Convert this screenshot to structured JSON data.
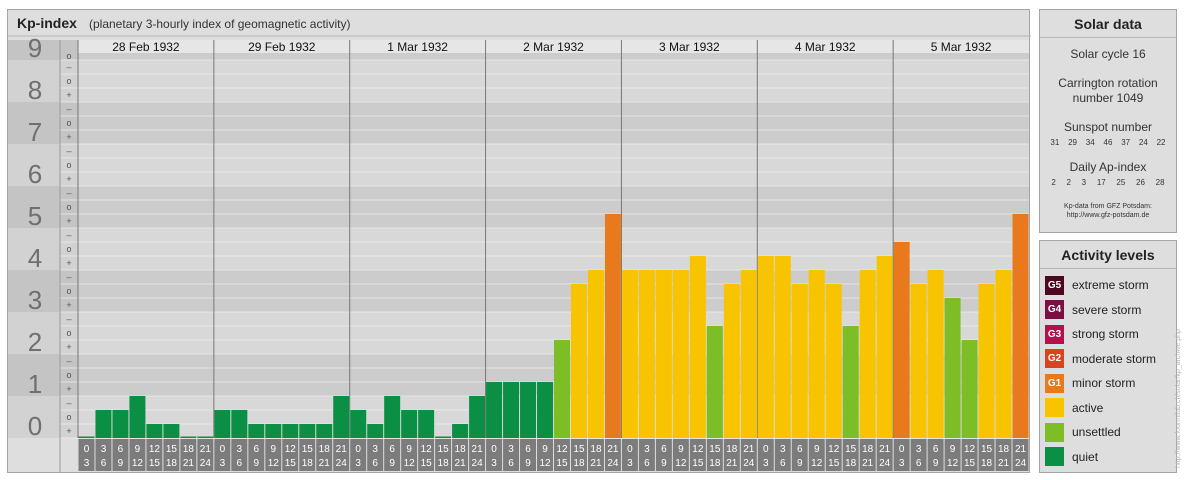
{
  "chart_data": {
    "type": "bar",
    "title": "Kp-index",
    "subtitle": "(planetary 3-hourly index of geomagnetic activity)",
    "ylim": [
      0,
      9
    ],
    "y_ticks": [
      "0",
      "1",
      "2",
      "3",
      "4",
      "5",
      "6",
      "7",
      "8",
      "9"
    ],
    "minor_ticks": [
      "+",
      "o",
      "–"
    ],
    "days": [
      "28 Feb 1932",
      "29 Feb 1932",
      "1 Mar 1932",
      "2 Mar 1932",
      "3 Mar 1932",
      "4 Mar 1932",
      "5 Mar 1932"
    ],
    "hour_start": [
      "0",
      "3",
      "6",
      "9",
      "12",
      "15",
      "18",
      "21"
    ],
    "hour_end": [
      "3",
      "6",
      "9",
      "12",
      "15",
      "18",
      "21",
      "24"
    ],
    "values": [
      [
        0.0,
        0.667,
        0.667,
        1.0,
        0.333,
        0.333,
        0.0,
        0.0
      ],
      [
        0.667,
        0.667,
        0.333,
        0.333,
        0.333,
        0.333,
        0.333,
        1.0
      ],
      [
        0.667,
        0.333,
        1.0,
        0.667,
        0.667,
        0.0,
        0.333,
        1.0
      ],
      [
        1.333,
        1.333,
        1.333,
        1.333,
        2.333,
        3.667,
        4.0,
        5.333
      ],
      [
        4.0,
        4.0,
        4.0,
        4.0,
        4.333,
        2.667,
        3.667,
        4.0
      ],
      [
        4.333,
        4.333,
        3.667,
        4.0,
        3.667,
        2.667,
        4.0,
        4.333
      ],
      [
        4.667,
        3.667,
        4.0,
        3.333,
        2.333,
        3.667,
        4.0,
        5.333
      ]
    ],
    "colors": {
      "quiet": "#0a8f45",
      "unsettled": "#7dbe26",
      "active": "#f8c400",
      "minor_storm": "#e8791c",
      "moderate_storm": "#d7451f",
      "strong_storm": "#b3104d",
      "severe_storm": "#7b0f43",
      "extreme_storm": "#4d0720"
    }
  },
  "solar": {
    "title": "Solar data",
    "cycle": "Solar cycle 16",
    "carrington_line1": "Carrington rotation",
    "carrington_line2": "number 1049",
    "sunspot_label": "Sunspot number",
    "sunspot_numbers": [
      "31",
      "29",
      "34",
      "46",
      "37",
      "24",
      "22"
    ],
    "ap_label": "Daily Ap-index",
    "ap_numbers": [
      "2",
      "2",
      "3",
      "17",
      "25",
      "26",
      "28"
    ],
    "credit1": "Kp-data from GFZ Potsdam:",
    "credit2": "http://www.gfz-potsdam.de"
  },
  "activity": {
    "title": "Activity levels",
    "levels": [
      {
        "code": "G5",
        "label": "extreme storm",
        "color": "#4d0720"
      },
      {
        "code": "G4",
        "label": "severe storm",
        "color": "#7b0f43"
      },
      {
        "code": "G3",
        "label": "strong storm",
        "color": "#b3104d"
      },
      {
        "code": "G2",
        "label": "moderate storm",
        "color": "#d7451f"
      },
      {
        "code": "G1",
        "label": "minor storm",
        "color": "#e8791c"
      },
      {
        "code": "",
        "label": "active",
        "color": "#f8c400"
      },
      {
        "code": "",
        "label": "unsettled",
        "color": "#7dbe26"
      },
      {
        "code": "",
        "label": "quiet",
        "color": "#0a8f45"
      }
    ]
  },
  "watermark": "http://www.fourmilab.ch/solar/kp_archive.php"
}
